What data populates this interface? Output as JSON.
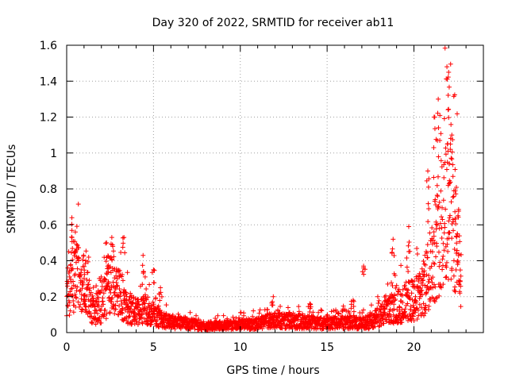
{
  "chart_data": {
    "type": "scatter",
    "title": "Day 320 of 2022, SRMTID for receiver ab11",
    "xlabel": "GPS time / hours",
    "ylabel": "SRMTID / TECUs",
    "xlim": [
      0,
      24
    ],
    "ylim": [
      0,
      1.6
    ],
    "xticks": [
      0,
      5,
      10,
      15,
      20
    ],
    "xtick_labels": [
      "0",
      "5",
      "10",
      "15",
      "20"
    ],
    "yticks": [
      0,
      0.2,
      0.4,
      0.6,
      0.8,
      1.0,
      1.2,
      1.4,
      1.6
    ],
    "ytick_labels": [
      "0",
      "0.2",
      "0.4",
      "0.6",
      "0.8",
      "1",
      "1.2",
      "1.4",
      "1.6"
    ],
    "grid": true,
    "marker": "+",
    "series": [
      {
        "name": "SRMTID",
        "color": "#ff0000",
        "envelope": [
          {
            "x": 0.0,
            "y": 0.22
          },
          {
            "x": 0.5,
            "y": 0.34
          },
          {
            "x": 1.0,
            "y": 0.26
          },
          {
            "x": 1.5,
            "y": 0.12
          },
          {
            "x": 2.0,
            "y": 0.15
          },
          {
            "x": 2.5,
            "y": 0.26
          },
          {
            "x": 3.0,
            "y": 0.22
          },
          {
            "x": 3.5,
            "y": 0.14
          },
          {
            "x": 4.0,
            "y": 0.12
          },
          {
            "x": 4.5,
            "y": 0.13
          },
          {
            "x": 5.0,
            "y": 0.1
          },
          {
            "x": 5.5,
            "y": 0.07
          },
          {
            "x": 6.0,
            "y": 0.06
          },
          {
            "x": 7.0,
            "y": 0.05
          },
          {
            "x": 8.0,
            "y": 0.035
          },
          {
            "x": 9.0,
            "y": 0.04
          },
          {
            "x": 10.0,
            "y": 0.045
          },
          {
            "x": 11.0,
            "y": 0.05
          },
          {
            "x": 12.0,
            "y": 0.07
          },
          {
            "x": 13.0,
            "y": 0.06
          },
          {
            "x": 14.0,
            "y": 0.06
          },
          {
            "x": 15.0,
            "y": 0.05
          },
          {
            "x": 16.0,
            "y": 0.06
          },
          {
            "x": 17.0,
            "y": 0.05
          },
          {
            "x": 17.5,
            "y": 0.06
          },
          {
            "x": 18.0,
            "y": 0.09
          },
          {
            "x": 18.5,
            "y": 0.12
          },
          {
            "x": 19.0,
            "y": 0.14
          },
          {
            "x": 19.5,
            "y": 0.17
          },
          {
            "x": 20.0,
            "y": 0.18
          },
          {
            "x": 20.5,
            "y": 0.22
          },
          {
            "x": 21.0,
            "y": 0.4
          },
          {
            "x": 21.5,
            "y": 0.6
          },
          {
            "x": 22.0,
            "y": 0.75
          },
          {
            "x": 22.3,
            "y": 0.65
          },
          {
            "x": 22.7,
            "y": 0.3
          }
        ],
        "peaks": [
          {
            "x": 0.3,
            "y": 0.64
          },
          {
            "x": 0.5,
            "y": 0.56
          },
          {
            "x": 1.1,
            "y": 0.4
          },
          {
            "x": 2.3,
            "y": 0.5
          },
          {
            "x": 2.6,
            "y": 0.53
          },
          {
            "x": 3.3,
            "y": 0.53
          },
          {
            "x": 4.4,
            "y": 0.43
          },
          {
            "x": 5.0,
            "y": 0.35
          },
          {
            "x": 5.4,
            "y": 0.25
          },
          {
            "x": 11.9,
            "y": 0.2
          },
          {
            "x": 14.0,
            "y": 0.16
          },
          {
            "x": 16.5,
            "y": 0.18
          },
          {
            "x": 17.1,
            "y": 0.37
          },
          {
            "x": 18.8,
            "y": 0.52
          },
          {
            "x": 19.7,
            "y": 0.59
          },
          {
            "x": 20.8,
            "y": 0.9
          },
          {
            "x": 21.2,
            "y": 1.2
          },
          {
            "x": 21.4,
            "y": 1.3
          },
          {
            "x": 21.9,
            "y": 1.48
          },
          {
            "x": 22.0,
            "y": 1.45
          },
          {
            "x": 22.1,
            "y": 1.05
          },
          {
            "x": 22.3,
            "y": 0.79
          },
          {
            "x": 22.5,
            "y": 0.55
          }
        ]
      }
    ]
  }
}
